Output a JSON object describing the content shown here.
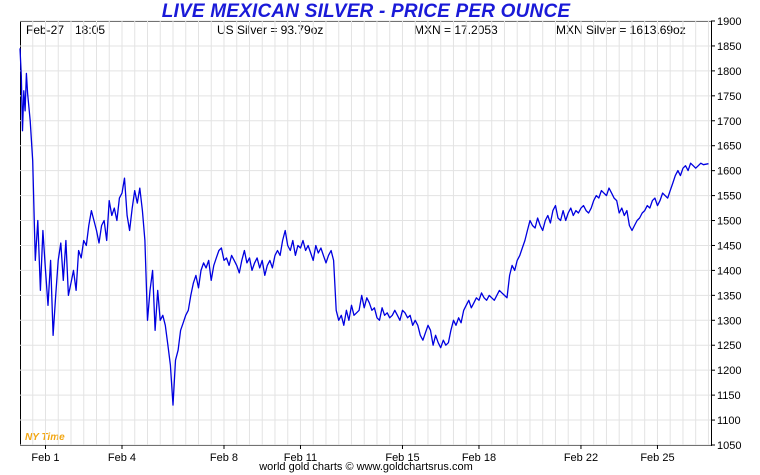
{
  "header": {
    "title": "LIVE MEXICAN SILVER - PRICE PER OUNCE",
    "date": "Feb-27",
    "time": "18:05",
    "us_silver": "US Silver = 93.79oz",
    "mxn_rate": "MXN = 17.2053",
    "mxn_silver": "MXN Silver = 1613.69oz"
  },
  "footer": {
    "source": "world gold charts © www.goldchartsrus.com"
  },
  "timezone_label": "NY Time",
  "colors": {
    "line": "#0000e0",
    "title": "#1a1ad8",
    "grid": "#e3e3e3",
    "timezone": "#f2a612"
  },
  "chart_data": {
    "type": "line",
    "title": "LIVE MEXICAN SILVER - PRICE PER OUNCE",
    "xlabel": "",
    "ylabel": "",
    "ylim": [
      1050,
      1900
    ],
    "y_ticks": [
      1050,
      1100,
      1150,
      1200,
      1250,
      1300,
      1350,
      1400,
      1450,
      1500,
      1550,
      1600,
      1650,
      1700,
      1750,
      1800,
      1850,
      1900
    ],
    "y_axis_side": "right",
    "x_ticks": [
      {
        "label": "Feb 1",
        "t": 1
      },
      {
        "label": "Feb 4",
        "t": 4
      },
      {
        "label": "Feb 8",
        "t": 8
      },
      {
        "label": "Feb 11",
        "t": 11
      },
      {
        "label": "Feb 15",
        "t": 15
      },
      {
        "label": "Feb 18",
        "t": 18
      },
      {
        "label": "Feb 22",
        "t": 22
      },
      {
        "label": "Feb 25",
        "t": 25
      }
    ],
    "xlim": [
      0,
      27.1
    ],
    "grid": true,
    "series": [
      {
        "values": [
          [
            0.0,
            1845
          ],
          [
            0.05,
            1790
          ],
          [
            0.1,
            1680
          ],
          [
            0.15,
            1760
          ],
          [
            0.2,
            1720
          ],
          [
            0.25,
            1795
          ],
          [
            0.3,
            1755
          ],
          [
            0.4,
            1700
          ],
          [
            0.5,
            1620
          ],
          [
            0.6,
            1420
          ],
          [
            0.7,
            1500
          ],
          [
            0.8,
            1360
          ],
          [
            0.9,
            1480
          ],
          [
            1.0,
            1400
          ],
          [
            1.1,
            1330
          ],
          [
            1.2,
            1420
          ],
          [
            1.3,
            1270
          ],
          [
            1.4,
            1350
          ],
          [
            1.5,
            1420
          ],
          [
            1.6,
            1455
          ],
          [
            1.7,
            1380
          ],
          [
            1.8,
            1460
          ],
          [
            1.9,
            1350
          ],
          [
            2.0,
            1375
          ],
          [
            2.1,
            1400
          ],
          [
            2.2,
            1360
          ],
          [
            2.3,
            1440
          ],
          [
            2.4,
            1425
          ],
          [
            2.5,
            1460
          ],
          [
            2.6,
            1450
          ],
          [
            2.7,
            1490
          ],
          [
            2.8,
            1520
          ],
          [
            3.0,
            1480
          ],
          [
            3.1,
            1455
          ],
          [
            3.2,
            1490
          ],
          [
            3.3,
            1500
          ],
          [
            3.4,
            1460
          ],
          [
            3.5,
            1540
          ],
          [
            3.6,
            1510
          ],
          [
            3.7,
            1525
          ],
          [
            3.8,
            1500
          ],
          [
            3.9,
            1545
          ],
          [
            4.0,
            1555
          ],
          [
            4.1,
            1585
          ],
          [
            4.2,
            1510
          ],
          [
            4.3,
            1480
          ],
          [
            4.4,
            1525
          ],
          [
            4.5,
            1560
          ],
          [
            4.6,
            1535
          ],
          [
            4.7,
            1565
          ],
          [
            4.8,
            1520
          ],
          [
            4.9,
            1460
          ],
          [
            5.0,
            1300
          ],
          [
            5.1,
            1360
          ],
          [
            5.2,
            1400
          ],
          [
            5.3,
            1280
          ],
          [
            5.4,
            1360
          ],
          [
            5.5,
            1300
          ],
          [
            5.6,
            1310
          ],
          [
            5.7,
            1290
          ],
          [
            5.8,
            1250
          ],
          [
            5.9,
            1210
          ],
          [
            6.0,
            1130
          ],
          [
            6.1,
            1220
          ],
          [
            6.2,
            1240
          ],
          [
            6.3,
            1280
          ],
          [
            6.4,
            1295
          ],
          [
            6.5,
            1310
          ],
          [
            6.6,
            1320
          ],
          [
            6.7,
            1350
          ],
          [
            6.8,
            1375
          ],
          [
            6.9,
            1390
          ],
          [
            7.0,
            1365
          ],
          [
            7.1,
            1400
          ],
          [
            7.2,
            1415
          ],
          [
            7.3,
            1405
          ],
          [
            7.4,
            1420
          ],
          [
            7.5,
            1380
          ],
          [
            7.6,
            1410
          ],
          [
            7.7,
            1425
          ],
          [
            7.8,
            1440
          ],
          [
            7.9,
            1445
          ],
          [
            8.0,
            1420
          ],
          [
            8.1,
            1425
          ],
          [
            8.2,
            1410
          ],
          [
            8.3,
            1430
          ],
          [
            8.4,
            1420
          ],
          [
            8.5,
            1410
          ],
          [
            8.6,
            1395
          ],
          [
            8.7,
            1420
          ],
          [
            8.8,
            1440
          ],
          [
            8.9,
            1415
          ],
          [
            9.0,
            1425
          ],
          [
            9.1,
            1400
          ],
          [
            9.2,
            1415
          ],
          [
            9.3,
            1425
          ],
          [
            9.4,
            1405
          ],
          [
            9.5,
            1420
          ],
          [
            9.6,
            1390
          ],
          [
            9.7,
            1410
          ],
          [
            9.8,
            1420
          ],
          [
            9.9,
            1405
          ],
          [
            10.0,
            1430
          ],
          [
            10.1,
            1440
          ],
          [
            10.2,
            1430
          ],
          [
            10.3,
            1460
          ],
          [
            10.4,
            1480
          ],
          [
            10.5,
            1450
          ],
          [
            10.6,
            1440
          ],
          [
            10.7,
            1460
          ],
          [
            10.8,
            1430
          ],
          [
            10.9,
            1450
          ],
          [
            11.0,
            1445
          ],
          [
            11.1,
            1460
          ],
          [
            11.2,
            1440
          ],
          [
            11.3,
            1450
          ],
          [
            11.4,
            1435
          ],
          [
            11.5,
            1420
          ],
          [
            11.6,
            1450
          ],
          [
            11.7,
            1435
          ],
          [
            11.8,
            1445
          ],
          [
            11.9,
            1430
          ],
          [
            12.0,
            1415
          ],
          [
            12.1,
            1430
          ],
          [
            12.2,
            1440
          ],
          [
            12.3,
            1420
          ],
          [
            12.4,
            1320
          ],
          [
            12.5,
            1300
          ],
          [
            12.6,
            1310
          ],
          [
            12.7,
            1290
          ],
          [
            12.8,
            1320
          ],
          [
            12.9,
            1300
          ],
          [
            13.0,
            1330
          ],
          [
            13.1,
            1310
          ],
          [
            13.2,
            1315
          ],
          [
            13.3,
            1320
          ],
          [
            13.4,
            1350
          ],
          [
            13.5,
            1325
          ],
          [
            13.6,
            1345
          ],
          [
            13.7,
            1335
          ],
          [
            13.8,
            1320
          ],
          [
            13.9,
            1325
          ],
          [
            14.0,
            1305
          ],
          [
            14.1,
            1300
          ],
          [
            14.2,
            1325
          ],
          [
            14.3,
            1310
          ],
          [
            14.4,
            1315
          ],
          [
            14.5,
            1305
          ],
          [
            14.6,
            1310
          ],
          [
            14.7,
            1320
          ],
          [
            14.8,
            1310
          ],
          [
            14.9,
            1300
          ],
          [
            15.0,
            1320
          ],
          [
            15.1,
            1315
          ],
          [
            15.2,
            1305
          ],
          [
            15.3,
            1310
          ],
          [
            15.4,
            1290
          ],
          [
            15.5,
            1300
          ],
          [
            15.6,
            1290
          ],
          [
            15.7,
            1270
          ],
          [
            15.8,
            1260
          ],
          [
            15.9,
            1275
          ],
          [
            16.0,
            1290
          ],
          [
            16.1,
            1280
          ],
          [
            16.2,
            1250
          ],
          [
            16.3,
            1270
          ],
          [
            16.4,
            1255
          ],
          [
            16.5,
            1245
          ],
          [
            16.6,
            1260
          ],
          [
            16.7,
            1250
          ],
          [
            16.8,
            1255
          ],
          [
            16.9,
            1280
          ],
          [
            17.0,
            1300
          ],
          [
            17.1,
            1290
          ],
          [
            17.2,
            1305
          ],
          [
            17.3,
            1295
          ],
          [
            17.4,
            1320
          ],
          [
            17.5,
            1330
          ],
          [
            17.6,
            1340
          ],
          [
            17.7,
            1325
          ],
          [
            17.8,
            1335
          ],
          [
            17.9,
            1345
          ],
          [
            18.0,
            1340
          ],
          [
            18.1,
            1355
          ],
          [
            18.2,
            1345
          ],
          [
            18.3,
            1340
          ],
          [
            18.4,
            1350
          ],
          [
            18.5,
            1345
          ],
          [
            18.6,
            1340
          ],
          [
            18.7,
            1350
          ],
          [
            18.8,
            1360
          ],
          [
            18.9,
            1355
          ],
          [
            19.0,
            1350
          ],
          [
            19.1,
            1345
          ],
          [
            19.2,
            1390
          ],
          [
            19.3,
            1410
          ],
          [
            19.4,
            1400
          ],
          [
            19.5,
            1420
          ],
          [
            19.6,
            1430
          ],
          [
            19.7,
            1445
          ],
          [
            19.8,
            1460
          ],
          [
            19.9,
            1480
          ],
          [
            20.0,
            1500
          ],
          [
            20.1,
            1490
          ],
          [
            20.2,
            1485
          ],
          [
            20.3,
            1505
          ],
          [
            20.4,
            1490
          ],
          [
            20.5,
            1480
          ],
          [
            20.6,
            1500
          ],
          [
            20.7,
            1510
          ],
          [
            20.8,
            1495
          ],
          [
            20.9,
            1520
          ],
          [
            21.0,
            1530
          ],
          [
            21.1,
            1505
          ],
          [
            21.2,
            1500
          ],
          [
            21.3,
            1520
          ],
          [
            21.4,
            1500
          ],
          [
            21.5,
            1515
          ],
          [
            21.6,
            1525
          ],
          [
            21.7,
            1510
          ],
          [
            21.8,
            1520
          ],
          [
            21.9,
            1515
          ],
          [
            22.0,
            1525
          ],
          [
            22.1,
            1530
          ],
          [
            22.2,
            1520
          ],
          [
            22.3,
            1515
          ],
          [
            22.4,
            1525
          ],
          [
            22.5,
            1540
          ],
          [
            22.6,
            1550
          ],
          [
            22.7,
            1545
          ],
          [
            22.8,
            1560
          ],
          [
            22.9,
            1555
          ],
          [
            23.0,
            1550
          ],
          [
            23.1,
            1565
          ],
          [
            23.2,
            1555
          ],
          [
            23.3,
            1545
          ],
          [
            23.4,
            1540
          ],
          [
            23.5,
            1515
          ],
          [
            23.6,
            1525
          ],
          [
            23.7,
            1510
          ],
          [
            23.8,
            1520
          ],
          [
            23.9,
            1490
          ],
          [
            24.0,
            1480
          ],
          [
            24.1,
            1490
          ],
          [
            24.2,
            1500
          ],
          [
            24.3,
            1505
          ],
          [
            24.4,
            1515
          ],
          [
            24.5,
            1520
          ],
          [
            24.6,
            1530
          ],
          [
            24.7,
            1525
          ],
          [
            24.8,
            1540
          ],
          [
            24.9,
            1545
          ],
          [
            25.0,
            1530
          ],
          [
            25.1,
            1540
          ],
          [
            25.2,
            1555
          ],
          [
            25.3,
            1550
          ],
          [
            25.4,
            1545
          ],
          [
            25.5,
            1560
          ],
          [
            25.6,
            1575
          ],
          [
            25.7,
            1590
          ],
          [
            25.8,
            1600
          ],
          [
            25.9,
            1590
          ],
          [
            26.0,
            1605
          ],
          [
            26.1,
            1610
          ],
          [
            26.2,
            1600
          ],
          [
            26.3,
            1615
          ],
          [
            26.4,
            1610
          ],
          [
            26.5,
            1605
          ],
          [
            26.6,
            1610
          ],
          [
            26.7,
            1615
          ],
          [
            26.8,
            1612
          ],
          [
            27.0,
            1614
          ]
        ]
      }
    ]
  }
}
